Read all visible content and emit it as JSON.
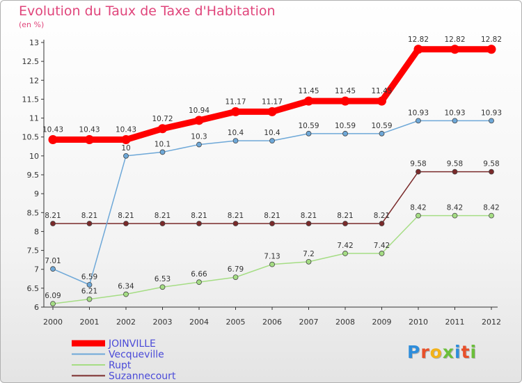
{
  "title": "Evolution du Taux de Taxe d'Habitation",
  "subtitle": "(en %)",
  "logo": {
    "text": "Proxiti",
    "colors": [
      "#2e8ddb",
      "#e8502a",
      "#f2b219",
      "#6bbf3a",
      "#2e8ddb",
      "#e8502a",
      "#6bbf3a"
    ]
  },
  "chart_data": {
    "type": "line",
    "x": [
      "2000",
      "2001",
      "2002",
      "2003",
      "2004",
      "2005",
      "2006",
      "2007",
      "2008",
      "2009",
      "2010",
      "2011",
      "2012"
    ],
    "ylim": [
      6,
      13
    ],
    "yticks": [
      "6",
      "6.5",
      "7",
      "7.5",
      "8",
      "8.5",
      "9",
      "9.5",
      "10",
      "10.5",
      "11",
      "11.5",
      "12",
      "12.5",
      "13"
    ],
    "grid": false,
    "legend_position": "bottom-left",
    "series": [
      {
        "name": "JOINVILLE",
        "color": "#ff0000",
        "values": [
          10.43,
          10.43,
          10.43,
          10.72,
          10.94,
          11.17,
          11.17,
          11.45,
          11.45,
          11.45,
          12.82,
          12.82,
          12.82
        ],
        "labels": [
          "10.43",
          "10.43",
          "10.43",
          "10.72",
          "10.94",
          "11.17",
          "11.17",
          "11.45",
          "11.45",
          "11.45",
          "12.82",
          "12.82",
          "12.82"
        ]
      },
      {
        "name": "Vecqueville",
        "color": "#6ea8d8",
        "values": [
          7.01,
          6.59,
          10,
          10.1,
          10.3,
          10.4,
          10.4,
          10.59,
          10.59,
          10.59,
          10.93,
          10.93,
          10.93
        ],
        "labels": [
          "7.01",
          "6.59",
          "10",
          "10.1",
          "10.3",
          "10.4",
          "10.4",
          "10.59",
          "10.59",
          "10.59",
          "10.93",
          "10.93",
          "10.93"
        ]
      },
      {
        "name": "Rupt",
        "color": "#a5dd84",
        "values": [
          6.09,
          6.21,
          6.34,
          6.53,
          6.66,
          6.79,
          7.13,
          7.2,
          7.42,
          7.42,
          8.42,
          8.42,
          8.42
        ],
        "labels": [
          "6.09",
          "6.21",
          "6.34",
          "6.53",
          "6.66",
          "6.79",
          "7.13",
          "7.2",
          "7.42",
          "7.42",
          "8.42",
          "8.42",
          "8.42"
        ]
      },
      {
        "name": "Suzannecourt",
        "color": "#7a2a2a",
        "values": [
          8.21,
          8.21,
          8.21,
          8.21,
          8.21,
          8.21,
          8.21,
          8.21,
          8.21,
          8.21,
          9.58,
          9.58,
          9.58
        ],
        "labels": [
          "8.21",
          "8.21",
          "8.21",
          "8.21",
          "8.21",
          "8.21",
          "8.21",
          "8.21",
          "8.21",
          "8.21",
          "9.58",
          "9.58",
          "9.58"
        ]
      }
    ]
  }
}
